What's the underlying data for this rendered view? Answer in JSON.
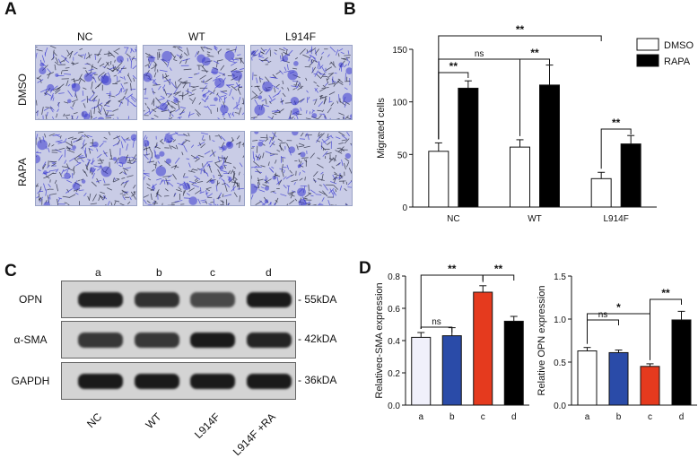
{
  "panels": {
    "a": "A",
    "b": "B",
    "c": "C",
    "d": "D"
  },
  "panel_a": {
    "columns": [
      "NC",
      "WT",
      "L914F"
    ],
    "rows": [
      "DMSO",
      "RAPA"
    ],
    "stain_color": "#3a3ad0"
  },
  "panel_c": {
    "lanes": [
      "a",
      "b",
      "c",
      "d"
    ],
    "blots": [
      {
        "name": "OPN",
        "size": "55kDA",
        "intensity": [
          0.95,
          0.8,
          0.6,
          1.0
        ]
      },
      {
        "name": "α-SMA",
        "size": "42kDA",
        "intensity": [
          0.75,
          0.75,
          1.0,
          0.9
        ]
      },
      {
        "name": "GAPDH",
        "size": "36kDA",
        "intensity": [
          1.0,
          1.0,
          1.0,
          1.0
        ]
      }
    ],
    "groups": [
      "NC",
      "WT",
      "L914F",
      "L914F +RA"
    ]
  },
  "chart_data": [
    {
      "type": "bar",
      "panel": "B",
      "categories": [
        "NC",
        "WT",
        "L914F"
      ],
      "series": [
        {
          "name": "DMSO",
          "values": [
            53,
            57,
            27
          ],
          "errors": [
            8,
            7,
            6
          ],
          "color": "#ffffff"
        },
        {
          "name": "RAPA",
          "values": [
            113,
            116,
            60
          ],
          "errors": [
            7,
            19,
            8
          ],
          "color": "#000000"
        }
      ],
      "ylabel": "Migrated cells",
      "ylim": [
        0,
        150
      ],
      "yticks": [
        0,
        50,
        100,
        150
      ],
      "legend": "top-right",
      "significance": [
        {
          "label": "**",
          "from": "NC.DMSO",
          "to": "NC.RAPA"
        },
        {
          "label": "ns",
          "from": "NC.DMSO",
          "to": "WT.DMSO"
        },
        {
          "label": "**",
          "from": "WT.DMSO",
          "to": "WT.RAPA"
        },
        {
          "label": "**",
          "from": "NC.DMSO",
          "to": "L914F.DMSO"
        },
        {
          "label": "**",
          "from": "L914F.DMSO",
          "to": "L914F.RAPA"
        }
      ]
    },
    {
      "type": "bar",
      "panel": "D-left",
      "categories": [
        "a",
        "b",
        "c",
        "d"
      ],
      "values": [
        0.42,
        0.43,
        0.7,
        0.52
      ],
      "errors": [
        0.03,
        0.05,
        0.04,
        0.03
      ],
      "colors": [
        "#f0f0fb",
        "#2a4ba8",
        "#e53a1e",
        "#000000"
      ],
      "ylabel": "Relativeα-SMA expression",
      "ylim": [
        0,
        0.8
      ],
      "yticks": [
        0.0,
        0.2,
        0.4,
        0.6,
        0.8
      ],
      "significance": [
        {
          "label": "ns",
          "from": "a",
          "to": "b"
        },
        {
          "label": "**",
          "from": "a",
          "to": "c"
        },
        {
          "label": "**",
          "from": "c",
          "to": "d"
        }
      ]
    },
    {
      "type": "bar",
      "panel": "D-right",
      "categories": [
        "a",
        "b",
        "c",
        "d"
      ],
      "values": [
        0.63,
        0.61,
        0.45,
        0.99
      ],
      "errors": [
        0.04,
        0.03,
        0.03,
        0.1
      ],
      "colors": [
        "#ffffff",
        "#2a4ba8",
        "#e53a1e",
        "#000000"
      ],
      "ylabel": "Relative OPN expression",
      "ylim": [
        0,
        1.5
      ],
      "yticks": [
        0.0,
        0.5,
        1.0,
        1.5
      ],
      "significance": [
        {
          "label": "ns",
          "from": "a",
          "to": "b"
        },
        {
          "label": "*",
          "from": "a",
          "to": "c"
        },
        {
          "label": "**",
          "from": "c",
          "to": "d"
        }
      ]
    }
  ]
}
